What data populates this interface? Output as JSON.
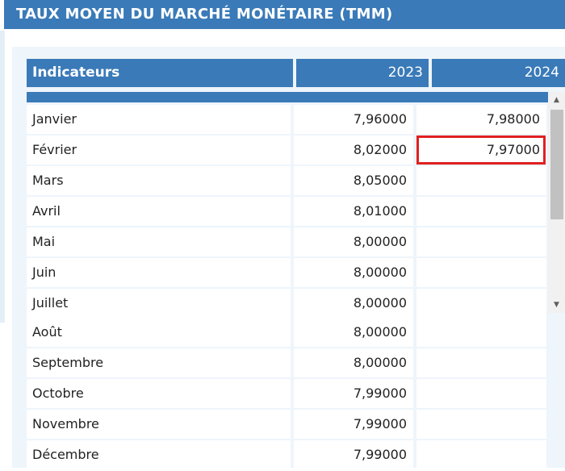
{
  "title": "TAUX MOYEN DU MARCHÉ MONÉTAIRE (TMM)",
  "headers": {
    "indicator": "Indicateurs",
    "year1": "2023",
    "year2": "2024"
  },
  "rows": [
    {
      "month": "Janvier",
      "v2023": "7,96000",
      "v2024": "7,98000"
    },
    {
      "month": "Février",
      "v2023": "8,02000",
      "v2024": "7,97000"
    },
    {
      "month": "Mars",
      "v2023": "8,05000",
      "v2024": ""
    },
    {
      "month": "Avril",
      "v2023": "8,01000",
      "v2024": ""
    },
    {
      "month": "Mai",
      "v2023": "8,00000",
      "v2024": ""
    },
    {
      "month": "Juin",
      "v2023": "8,00000",
      "v2024": ""
    },
    {
      "month": "Juillet",
      "v2023": "8,00000",
      "v2024": ""
    },
    {
      "month": "Août",
      "v2023": "8,00000",
      "v2024": ""
    },
    {
      "month": "Septembre",
      "v2023": "8,00000",
      "v2024": ""
    },
    {
      "month": "Octobre",
      "v2023": "7,99000",
      "v2024": ""
    },
    {
      "month": "Novembre",
      "v2023": "7,99000",
      "v2024": ""
    },
    {
      "month": "Décembre",
      "v2023": "7,99000",
      "v2024": ""
    }
  ],
  "colors": {
    "header": "#3a7ab8",
    "panel": "#eef5fb",
    "highlight": "#e02020"
  },
  "icons": {
    "scroll_up": "triangle-up-icon",
    "scroll_down": "triangle-down-icon"
  }
}
